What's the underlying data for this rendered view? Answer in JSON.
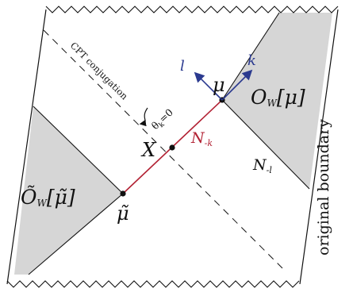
{
  "labels": {
    "cpt": "CPT conjugation",
    "theta": "θ",
    "theta_sub": "k",
    "theta_eq": "=0",
    "x": "X",
    "mu": "μ",
    "mu_tilde": "μ̃",
    "n_k": "N",
    "n_k_sub": "-k",
    "n_l": "N",
    "n_l_sub": "-l",
    "o_w": "O",
    "o_w_sub": "W",
    "o_w_arg": "[μ]",
    "o_w_tilde": "Õ",
    "o_w_tilde_sub": "W",
    "o_w_tilde_arg": "[μ̃]",
    "l": "l",
    "k": "k",
    "boundary": "original boundary"
  },
  "colors": {
    "shade": "#d6d6d6",
    "red": "#b22234",
    "blue": "#2b3a8f",
    "ink": "#111111"
  },
  "icons": {
    "cpt_arrow": "curved-arrow-icon"
  }
}
